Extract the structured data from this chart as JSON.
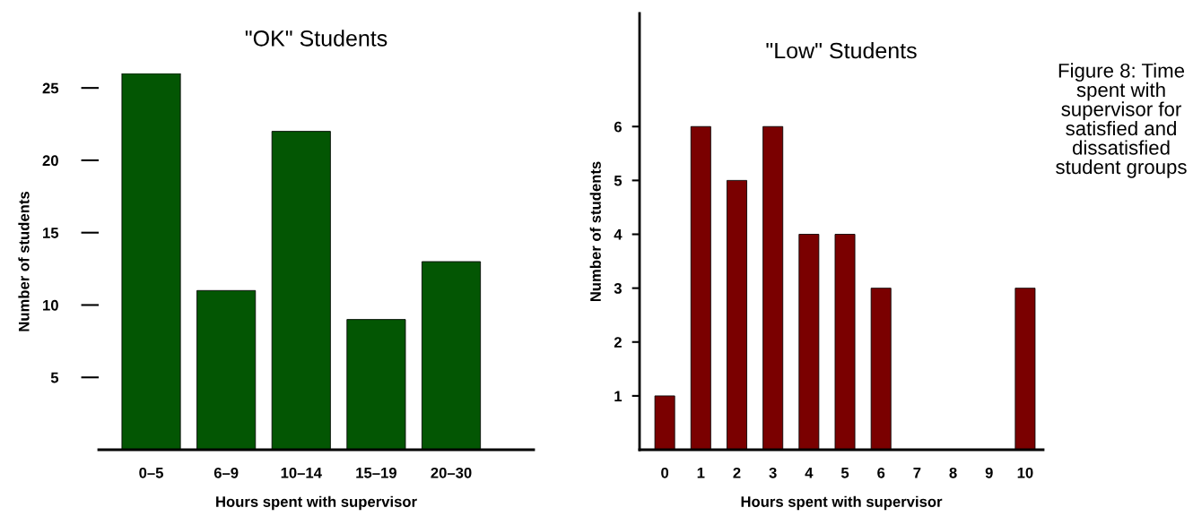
{
  "chart_data": [
    {
      "type": "bar",
      "title": "\"OK\" Students",
      "xlabel": "Hours spent with supervisor",
      "ylabel": "Number of students",
      "categories": [
        "0–5",
        "6–9",
        "10–14",
        "15–19",
        "20–30"
      ],
      "series": [
        {
          "color": "#035603",
          "values": [
            26,
            11,
            22,
            9,
            13
          ]
        }
      ],
      "ylim": [
        0,
        26
      ],
      "yticks": [
        5,
        10,
        15,
        20,
        25
      ],
      "grid": false,
      "legend": false
    },
    {
      "type": "bar",
      "title": "\"Low\" Students",
      "xlabel": "Hours spent with supervisor",
      "ylabel": "Number of students",
      "categories": [
        "0",
        "1",
        "2",
        "3",
        "4",
        "5",
        "6",
        "7",
        "8",
        "9",
        "10"
      ],
      "series": [
        {
          "color": "#7a0000",
          "values": [
            1,
            6,
            5,
            6,
            4,
            4,
            3,
            0,
            0,
            0,
            3
          ]
        }
      ],
      "ylim": [
        0,
        8.1
      ],
      "yticks": [
        1,
        2,
        3,
        4,
        5,
        6
      ],
      "grid": false,
      "legend": false,
      "annotations": [
        "Figure 8: Time spent with supervisor for satisfied and dissatisfied student groups"
      ]
    }
  ]
}
